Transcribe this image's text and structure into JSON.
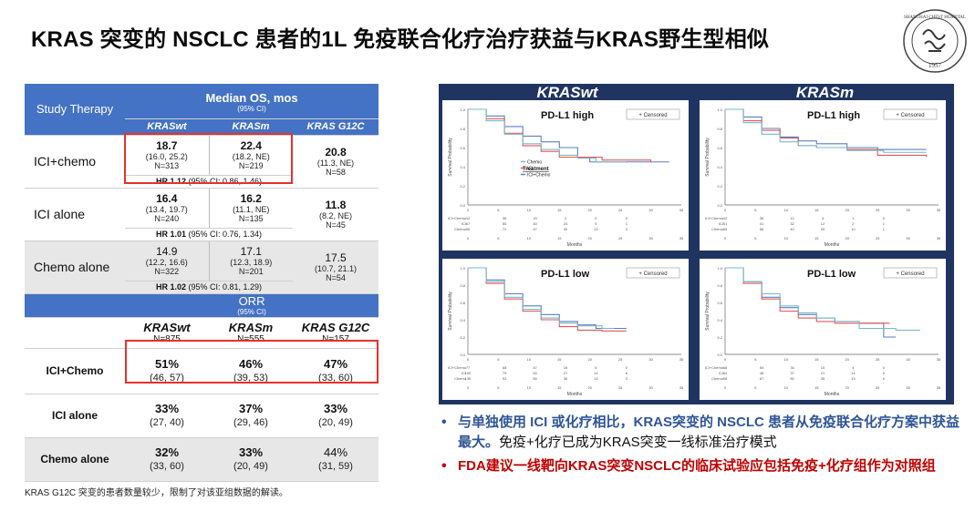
{
  "title": "KRAS 突变的 NSCLC 患者的1L 免疫联合化疗治疗获益与KRAS野生型相似",
  "logo": {
    "text": "SHANGHAI CHEST HOSPITAL",
    "year": "1957"
  },
  "os_table": {
    "header_label": "Study Therapy",
    "header_title": "Median OS, mos",
    "header_sub": "(95% CI)",
    "columns": [
      "KRASwt",
      "KRASm",
      "KRAS G12C"
    ],
    "rows": [
      {
        "label": "ICI+chemo",
        "cells": [
          {
            "v": "18.7",
            "ci": "(16.0, 25.2)",
            "n": "N=313"
          },
          {
            "v": "22.4",
            "ci": "(18.2, NE)",
            "n": "N=219"
          },
          {
            "v": "20.8",
            "ci": "(11.3, NE)",
            "n": "N=58"
          }
        ],
        "hr_bold": "HR 1.12",
        "hr_rest": " (95% CI: 0.86, 1.46)"
      },
      {
        "label": "ICI alone",
        "cells": [
          {
            "v": "16.4",
            "ci": "(13.4, 19.7)",
            "n": "N=240"
          },
          {
            "v": "16.2",
            "ci": "(11.1, NE)",
            "n": "N=135"
          },
          {
            "v": "11.8",
            "ci": "(8.2, NE)",
            "n": "N=45"
          }
        ],
        "hr_bold": "HR 1.01",
        "hr_rest": " (95% CI: 0.76, 1.34)"
      },
      {
        "label": "Chemo alone",
        "cells": [
          {
            "v": "14.9",
            "ci": "(12.2, 16.6)",
            "n": "N=322"
          },
          {
            "v": "17.1",
            "ci": "(12.3, 18.9)",
            "n": "N=201"
          },
          {
            "v": "17.5",
            "ci": "(10.7, 21.1)",
            "n": "N=54"
          }
        ],
        "hr_bold": "HR 1.02",
        "hr_rest": " (95% CI: 0.81, 1.29)"
      }
    ]
  },
  "orr_table": {
    "title": "ORR",
    "sub": "(95% CI)",
    "columns": [
      {
        "name": "KRASwt",
        "n": "N=875"
      },
      {
        "name": "KRASm",
        "n": "N=555"
      },
      {
        "name": "KRAS G12C",
        "n": "N=157"
      }
    ],
    "rows": [
      {
        "label": "ICI+Chemo",
        "cells": [
          {
            "v": "51%",
            "ci": "(46, 57)"
          },
          {
            "v": "46%",
            "ci": "(39, 53)"
          },
          {
            "v": "47%",
            "ci": "(33, 60)"
          }
        ]
      },
      {
        "label": "ICI alone",
        "cells": [
          {
            "v": "33%",
            "ci": "(27, 40)"
          },
          {
            "v": "37%",
            "ci": "(29, 46)"
          },
          {
            "v": "33%",
            "ci": "(20, 49)"
          }
        ]
      },
      {
        "label": "Chemo alone",
        "cells": [
          {
            "v": "32%",
            "ci": "(33, 60)"
          },
          {
            "v": "33%",
            "ci": "(20, 49)"
          },
          {
            "v": "44%",
            "ci": "(31, 59)"
          }
        ]
      }
    ]
  },
  "footnote": "KRAS G12C 突变的患者数量较少，限制了对该亚组数据的解读。",
  "km": {
    "left_header": "KRASwt",
    "right_header": "KRASm",
    "censored_label": "Censored",
    "ylabel": "Survival Probability",
    "xlabel": "Months",
    "x_ticks": [
      "0",
      "5",
      "10",
      "15",
      "20",
      "25",
      "30",
      "35"
    ],
    "y_ticks": [
      "0.0",
      "0.1",
      "0.2",
      "0.3",
      "0.4",
      "0.5",
      "0.6",
      "0.7",
      "0.8",
      "0.9",
      "1.0"
    ],
    "legend_title": "Treatment",
    "legend_items": [
      "ICI+Chemo",
      "ICI",
      "Chemo"
    ],
    "colors": {
      "ici_chemo": "#5a7fc0",
      "ici": "#e35555",
      "chemo": "#7ab8c8",
      "wt": "#555555"
    },
    "risk_labels": [
      "ICI+Chemo",
      "ICI",
      "Chemo"
    ],
    "panels": [
      {
        "title": "PD-L1 high",
        "risk": [
          [
            "42",
            "36",
            "15",
            "2",
            "0",
            "0"
          ],
          [
            "67",
            "55",
            "40",
            "24",
            "5",
            "1"
          ],
          [
            "96",
            "72",
            "47",
            "30",
            "13",
            "3"
          ]
        ]
      },
      {
        "title": "PD-L1 high",
        "risk": [
          [
            "42",
            "36",
            "12",
            "3",
            "1",
            "0"
          ],
          [
            "51",
            "41",
            "32",
            "12",
            "2",
            "1"
          ],
          [
            "69",
            "56",
            "40",
            "25",
            "10",
            "1"
          ]
        ]
      },
      {
        "title": "PD-L1 low",
        "risk": [
          [
            "77",
            "68",
            "47",
            "16",
            "6",
            "0"
          ],
          [
            "100",
            "79",
            "54",
            "27",
            "14",
            "6"
          ],
          [
            "135",
            "93",
            "55",
            "36",
            "13",
            "3"
          ]
        ]
      },
      {
        "title": "PD-L1 low",
        "risk": [
          [
            "68",
            "54",
            "34",
            "10",
            "4",
            "0"
          ],
          [
            "64",
            "48",
            "37",
            "21",
            "14",
            "5"
          ],
          [
            "98",
            "67",
            "50",
            "35",
            "13",
            "6"
          ]
        ]
      }
    ]
  },
  "bullets": [
    {
      "bold": "与单独使用 ICI 或化疗相比，KRAS突变的 NSCLC 患者从免疫联合化疗方案中获益最大。",
      "rest": "免疫+化疗已成为KRAS突变一线标准治疗模式",
      "style": "blue"
    },
    {
      "bold": "FDA建议一线靶向KRAS突变NSCLC的临床试验应包括免疫+化疗组作为对照组",
      "rest": "",
      "style": "red"
    }
  ]
}
